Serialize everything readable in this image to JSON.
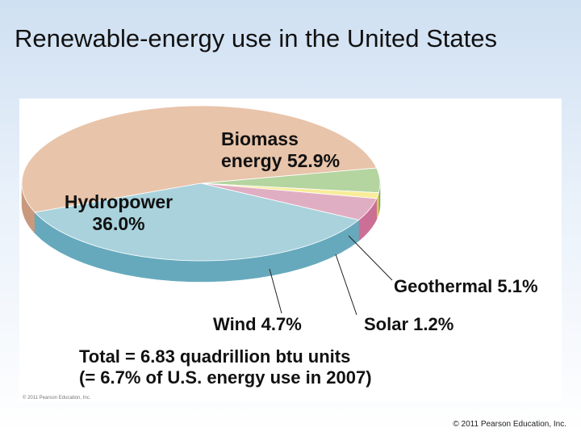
{
  "slide": {
    "title": "Renewable-energy use in the United States",
    "copyright": "© 2011 Pearson Education, Inc.",
    "figure_credit": "© 2011 Pearson Education, Inc."
  },
  "chart_data": {
    "type": "pie",
    "title": "",
    "slices": [
      {
        "name": "Biomass energy",
        "value": 52.9,
        "label_lines": [
          "Biomass",
          "energy 52.9%"
        ],
        "color": "#e8c4aa",
        "side_color": "#c9997d"
      },
      {
        "name": "Geothermal",
        "value": 5.1,
        "label_lines": [
          "Geothermal 5.1%"
        ],
        "color": "#b4d4a0",
        "side_color": "#6eaa5e"
      },
      {
        "name": "Solar",
        "value": 1.2,
        "label_lines": [
          "Solar 1.2%"
        ],
        "color": "#f8ec9a",
        "side_color": "#dcc95a"
      },
      {
        "name": "Wind",
        "value": 4.7,
        "label_lines": [
          "Wind 4.7%"
        ],
        "color": "#e0aec2",
        "side_color": "#cc6f96"
      },
      {
        "name": "Hydropower",
        "value": 36.0,
        "label_lines": [
          "Hydropower",
          "36.0%"
        ],
        "color": "#a9d2dc",
        "side_color": "#66a9bd"
      }
    ],
    "annotations": [
      "Total = 6.83 quadrillion btu units",
      "(= 6.7% of U.S. energy use in 2007)"
    ]
  }
}
